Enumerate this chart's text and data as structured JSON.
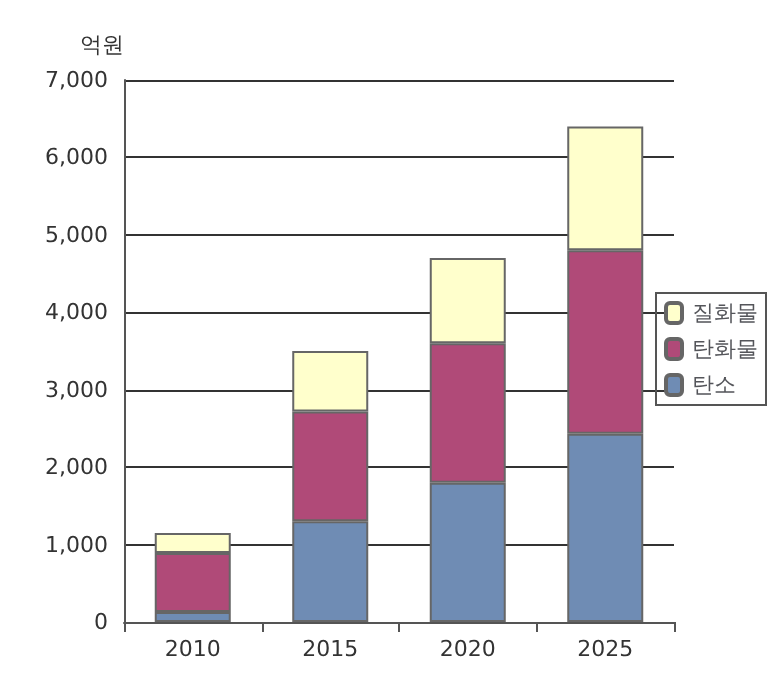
{
  "chart_data": {
    "type": "bar",
    "stacked": true,
    "ylabel": "억원",
    "categories": [
      "2010",
      "2015",
      "2020",
      "2025"
    ],
    "series": [
      {
        "name": "탄소",
        "color": "#6f8cb4",
        "values": [
          130,
          1300,
          1800,
          2430
        ]
      },
      {
        "name": "탄화물",
        "color": "#b04a78",
        "values": [
          760,
          1420,
          1800,
          2370
        ]
      },
      {
        "name": "질화물",
        "color": "#ffffcc",
        "values": [
          260,
          780,
          1100,
          1600
        ]
      }
    ],
    "ylim": [
      0,
      7000
    ],
    "yticks": [
      0,
      {
        "value": 1000,
        "label": "1,000"
      },
      {
        "value": 2000,
        "label": "2,000"
      },
      {
        "value": 3000,
        "label": "3,000"
      },
      {
        "value": 4000,
        "label": "4,000"
      },
      {
        "value": 5000,
        "label": "5,000"
      },
      {
        "value": 6000,
        "label": "6,000"
      },
      {
        "value": 7000,
        "label": "7,000"
      }
    ],
    "grid": "y",
    "legend": "right"
  }
}
